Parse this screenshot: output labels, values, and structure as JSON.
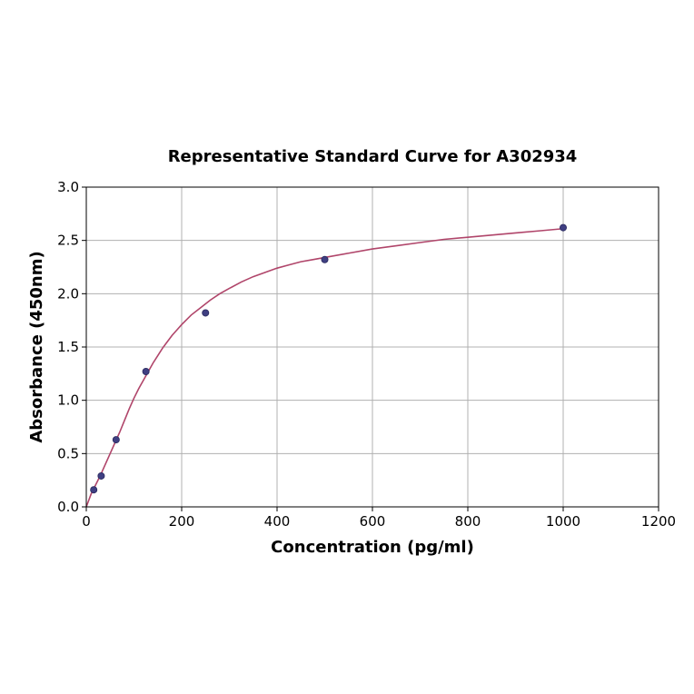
{
  "chart_data": {
    "type": "scatter",
    "title": "Representative Standard Curve for A302934",
    "xlabel": "Concentration (pg/ml)",
    "ylabel": "Absorbance (450nm)",
    "xlim": [
      0,
      1200
    ],
    "ylim": [
      0,
      3.0
    ],
    "xticks": [
      0,
      200,
      400,
      600,
      800,
      1000,
      1200
    ],
    "yticks": [
      0.0,
      0.5,
      1.0,
      1.5,
      2.0,
      2.5,
      3.0
    ],
    "xtick_labels": [
      "0",
      "200",
      "400",
      "600",
      "800",
      "1000",
      "1200"
    ],
    "ytick_labels": [
      "0.0",
      "0.5",
      "1.0",
      "1.5",
      "2.0",
      "2.5",
      "3.0"
    ],
    "grid": true,
    "series": [
      {
        "type": "scatter",
        "x": [
          15.6,
          31.25,
          62.5,
          125,
          250,
          500,
          1000
        ],
        "y": [
          0.16,
          0.29,
          0.63,
          1.27,
          1.82,
          2.32,
          2.62
        ]
      },
      {
        "type": "line",
        "x": [
          0,
          10,
          20,
          30,
          40,
          50,
          60,
          70,
          80,
          90,
          100,
          110,
          120,
          130,
          140,
          150,
          160,
          170,
          180,
          190,
          200,
          220,
          240,
          260,
          280,
          300,
          325,
          350,
          375,
          400,
          425,
          450,
          475,
          500,
          550,
          600,
          650,
          700,
          750,
          800,
          850,
          900,
          950,
          1000
        ],
        "y": [
          0.0,
          0.12,
          0.21,
          0.3,
          0.4,
          0.5,
          0.6,
          0.7,
          0.81,
          0.92,
          1.02,
          1.11,
          1.19,
          1.27,
          1.35,
          1.42,
          1.49,
          1.55,
          1.61,
          1.66,
          1.71,
          1.8,
          1.87,
          1.94,
          2.0,
          2.05,
          2.11,
          2.16,
          2.2,
          2.24,
          2.27,
          2.3,
          2.32,
          2.34,
          2.38,
          2.42,
          2.45,
          2.48,
          2.51,
          2.53,
          2.55,
          2.57,
          2.59,
          2.61
        ]
      }
    ],
    "colors": {
      "marker_fill": "#3f3f82",
      "marker_edge": "#2a2a5e",
      "curve": "#b0456a",
      "grid": "#b0b0b0",
      "axis": "#000000"
    }
  }
}
